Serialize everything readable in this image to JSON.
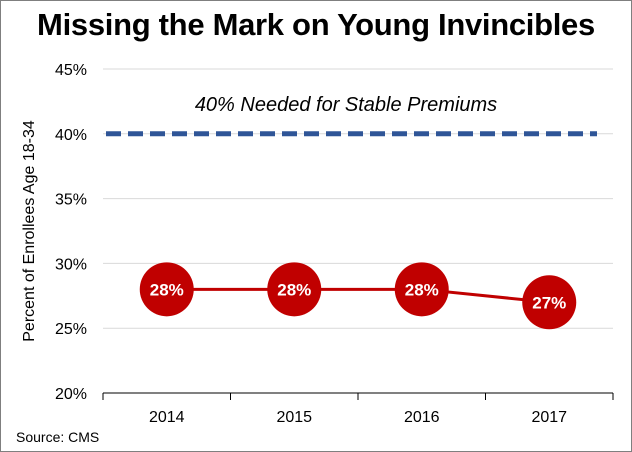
{
  "chart_data": {
    "type": "line",
    "title": "Missing the Mark on Young Invincibles",
    "xlabel": "",
    "ylabel": "Percent of Enrollees Age 18-34",
    "x": [
      "2014",
      "2015",
      "2016",
      "2017"
    ],
    "series": [
      {
        "values": [
          28,
          28,
          28,
          27
        ],
        "data_labels": [
          "28%",
          "28%",
          "28%",
          "27%"
        ],
        "color": "#c00000"
      }
    ],
    "reference_line": {
      "value": 40,
      "label": "40% Needed for Stable Premiums",
      "color": "#2f5597",
      "style": "dashed"
    },
    "ylim": [
      20,
      45
    ],
    "yticks": [
      20,
      25,
      30,
      35,
      40,
      45
    ],
    "ytick_labels": [
      "20%",
      "25%",
      "30%",
      "35%",
      "40%",
      "45%"
    ],
    "grid": "horizontal",
    "legend": "none",
    "source": "Source: CMS"
  }
}
